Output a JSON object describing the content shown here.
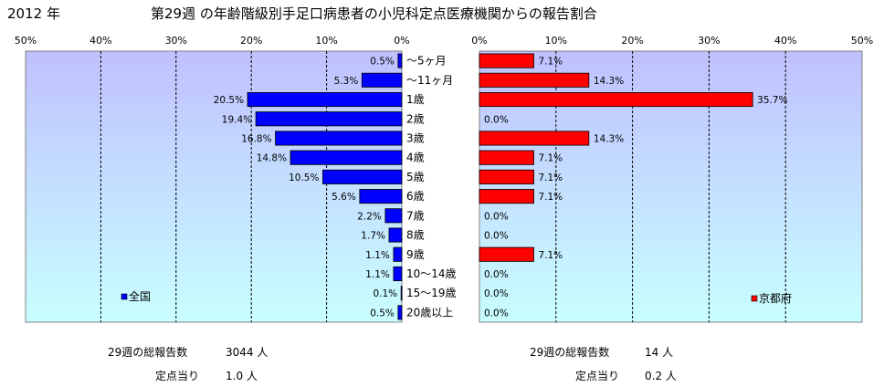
{
  "header": {
    "year_label": "2012 年",
    "title": "第29週 の年齢階級別手足口病患者の小児科定点医療機関からの報告割合"
  },
  "chart_data": {
    "type": "bar",
    "orientation": "horizontal-butterfly",
    "categories": [
      "～5ヶ月",
      "～11ヶ月",
      "1歳",
      "2歳",
      "3歳",
      "4歳",
      "5歳",
      "6歳",
      "7歳",
      "8歳",
      "9歳",
      "10～14歳",
      "15～19歳",
      "20歳以上"
    ],
    "xlim": [
      0,
      50
    ],
    "tick_labels": [
      "50%",
      "40%",
      "30%",
      "20%",
      "10%",
      "0%"
    ],
    "tick_labels_right": [
      "0%",
      "10%",
      "20%",
      "30%",
      "40%",
      "50%"
    ],
    "grid": true,
    "series": [
      {
        "name": "全国",
        "side": "left",
        "color": "#0000ff",
        "values": [
          0.5,
          5.3,
          20.5,
          19.4,
          16.8,
          14.8,
          10.5,
          5.6,
          2.2,
          1.7,
          1.1,
          1.1,
          0.1,
          0.5
        ],
        "value_labels": [
          "0.5%",
          "5.3%",
          "20.5%",
          "19.4%",
          "16.8%",
          "14.8%",
          "10.5%",
          "5.6%",
          "2.2%",
          "1.7%",
          "1.1%",
          "1.1%",
          "0.1%",
          "0.5%"
        ],
        "legend_placement": "bottom-left"
      },
      {
        "name": "京都府",
        "side": "right",
        "color": "#ff0000",
        "values": [
          7.1,
          14.3,
          35.7,
          0.0,
          14.3,
          7.1,
          7.1,
          7.1,
          0.0,
          0.0,
          7.1,
          0.0,
          0.0,
          0.0
        ],
        "value_labels": [
          "7.1%",
          "14.3%",
          "35.7%",
          "0.0%",
          "14.3%",
          "7.1%",
          "7.1%",
          "7.1%",
          "0.0%",
          "0.0%",
          "7.1%",
          "0.0%",
          "0.0%",
          "0.0%"
        ],
        "legend_placement": "bottom-right"
      }
    ]
  },
  "stats": {
    "national_total_label": "29週の総報告数",
    "national_total_value": "3044 人",
    "national_per_label": "定点当り",
    "national_per_value": "1.0 人",
    "kyoto_total_label": "29週の総報告数",
    "kyoto_total_value": "14 人",
    "kyoto_per_label": "定点当り",
    "kyoto_per_value": "0.2 人"
  },
  "colors": {
    "plot_gradient_top": "#c0c0ff",
    "plot_gradient_bottom": "#c8ffff",
    "national_bar": "#0000ff",
    "kyoto_bar": "#ff0000"
  }
}
